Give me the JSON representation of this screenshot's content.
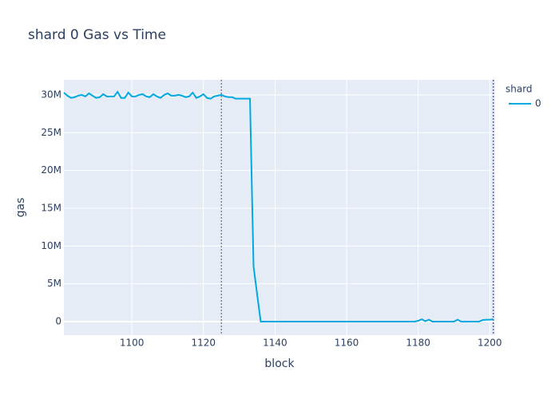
{
  "chart_data": {
    "type": "line",
    "title": "shard 0 Gas vs Time",
    "x_label": "block",
    "y_label": "gas",
    "legend_title": "shard",
    "legend_position": "right",
    "grid": true,
    "xlim": [
      1081,
      1201.5
    ],
    "ylim": [
      -1800000,
      32000000
    ],
    "xticks": [
      1100,
      1120,
      1140,
      1160,
      1180,
      1200
    ],
    "yticks": [
      {
        "value": 0,
        "label": "0"
      },
      {
        "value": 5000000,
        "label": "5M"
      },
      {
        "value": 10000000,
        "label": "10M"
      },
      {
        "value": 15000000,
        "label": "15M"
      },
      {
        "value": 20000000,
        "label": "20M"
      },
      {
        "value": 25000000,
        "label": "25M"
      },
      {
        "value": 30000000,
        "label": "30M"
      }
    ],
    "vlines": [
      1125,
      1201
    ],
    "x": [
      1081,
      1082,
      1083,
      1084,
      1085,
      1086,
      1087,
      1088,
      1089,
      1090,
      1091,
      1092,
      1093,
      1094,
      1095,
      1096,
      1097,
      1098,
      1099,
      1100,
      1101,
      1102,
      1103,
      1104,
      1105,
      1106,
      1107,
      1108,
      1109,
      1110,
      1111,
      1112,
      1113,
      1114,
      1115,
      1116,
      1117,
      1118,
      1119,
      1120,
      1121,
      1122,
      1123,
      1124,
      1125,
      1126,
      1127,
      1128,
      1129,
      1130,
      1131,
      1132,
      1133,
      1134,
      1135,
      1136,
      1137,
      1138,
      1139,
      1140,
      1141,
      1142,
      1143,
      1144,
      1145,
      1146,
      1147,
      1148,
      1149,
      1150,
      1151,
      1152,
      1153,
      1154,
      1155,
      1156,
      1157,
      1158,
      1159,
      1160,
      1161,
      1162,
      1163,
      1164,
      1165,
      1166,
      1167,
      1168,
      1169,
      1170,
      1171,
      1172,
      1173,
      1174,
      1175,
      1176,
      1177,
      1178,
      1179,
      1180,
      1181,
      1182,
      1183,
      1184,
      1185,
      1186,
      1187,
      1188,
      1189,
      1190,
      1191,
      1192,
      1193,
      1194,
      1195,
      1196,
      1197,
      1198,
      1199,
      1200,
      1201
    ],
    "series": [
      {
        "name": "0",
        "color": "#00a9e0",
        "values": [
          30300000,
          29900000,
          29600000,
          29700000,
          29900000,
          30000000,
          29800000,
          30200000,
          29900000,
          29600000,
          29700000,
          30100000,
          29800000,
          29800000,
          29800000,
          30400000,
          29600000,
          29600000,
          30300000,
          29800000,
          29800000,
          30000000,
          30100000,
          29800000,
          29700000,
          30100000,
          29800000,
          29600000,
          30000000,
          30200000,
          29900000,
          29900000,
          30000000,
          29900000,
          29700000,
          29800000,
          30300000,
          29600000,
          29800000,
          30100000,
          29600000,
          29500000,
          29800000,
          29900000,
          30000000,
          29800000,
          29700000,
          29700000,
          29500000,
          29500000,
          29500000,
          29500000,
          29500000,
          7300000,
          3600000,
          0,
          0,
          0,
          0,
          0,
          0,
          0,
          0,
          0,
          0,
          0,
          0,
          0,
          0,
          0,
          0,
          0,
          0,
          0,
          0,
          0,
          0,
          0,
          0,
          0,
          0,
          0,
          0,
          0,
          0,
          0,
          0,
          0,
          0,
          0,
          0,
          0,
          0,
          0,
          0,
          0,
          0,
          0,
          0,
          100000,
          300000,
          50000,
          250000,
          0,
          0,
          0,
          0,
          0,
          0,
          0,
          250000,
          0,
          0,
          0,
          0,
          0,
          0,
          200000,
          250000,
          250000,
          300000
        ]
      }
    ]
  }
}
